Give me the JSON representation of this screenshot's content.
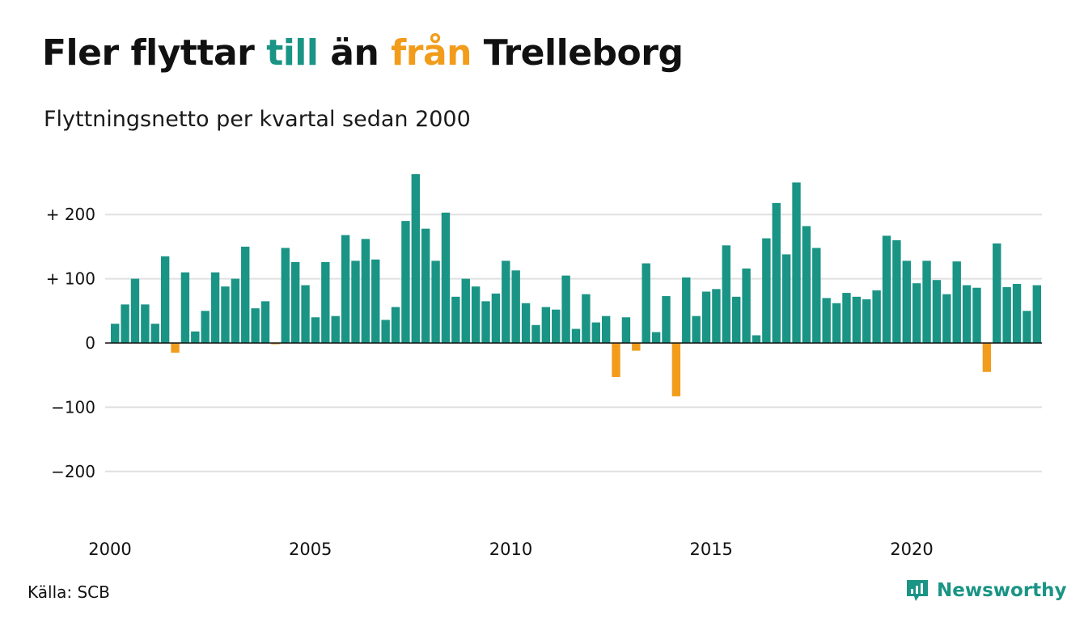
{
  "title": {
    "part1": "Fler flyttar ",
    "pos_word": "till",
    "part2": " än ",
    "neg_word": "från",
    "part3": " Trelleborg"
  },
  "subtitle": "Flyttningsnetto per kvartal sedan 2000",
  "source": "Källa: SCB",
  "brand": {
    "name": "Newsworthy",
    "icon": "newsworthy-logo-icon"
  },
  "colors": {
    "positive": "#1a9485",
    "negative": "#f29c1b",
    "grid": "#e0e0e0",
    "zero_line": "#111111"
  },
  "chart_data": {
    "type": "bar",
    "title": "Fler flyttar till än från Trelleborg",
    "subtitle": "Flyttningsnetto per kvartal sedan 2000",
    "x_start": "2000 Q1",
    "x_interval": "quarter",
    "xticks": [
      "2000",
      "2005",
      "2010",
      "2015",
      "2020"
    ],
    "yticks": [
      "+ 200",
      "+ 100",
      "0",
      "−100",
      "−200"
    ],
    "ytick_values": [
      200,
      100,
      0,
      -100,
      -200
    ],
    "ylim": [
      -200,
      260
    ],
    "grid": true,
    "values": [
      30,
      60,
      100,
      60,
      30,
      135,
      -15,
      110,
      18,
      50,
      110,
      88,
      100,
      150,
      54,
      65,
      -2,
      148,
      126,
      90,
      40,
      126,
      42,
      168,
      128,
      162,
      130,
      36,
      56,
      190,
      263,
      178,
      128,
      203,
      72,
      100,
      88,
      65,
      77,
      128,
      113,
      62,
      28,
      56,
      52,
      105,
      22,
      76,
      32,
      42,
      -53,
      40,
      -12,
      124,
      17,
      73,
      -83,
      102,
      42,
      80,
      84,
      152,
      72,
      116,
      12,
      163,
      218,
      138,
      250,
      182,
      148,
      70,
      62,
      78,
      72,
      68,
      82,
      167,
      160,
      128,
      93,
      128,
      98,
      76,
      127,
      90,
      86,
      -45,
      155,
      87,
      92,
      50,
      90
    ]
  }
}
